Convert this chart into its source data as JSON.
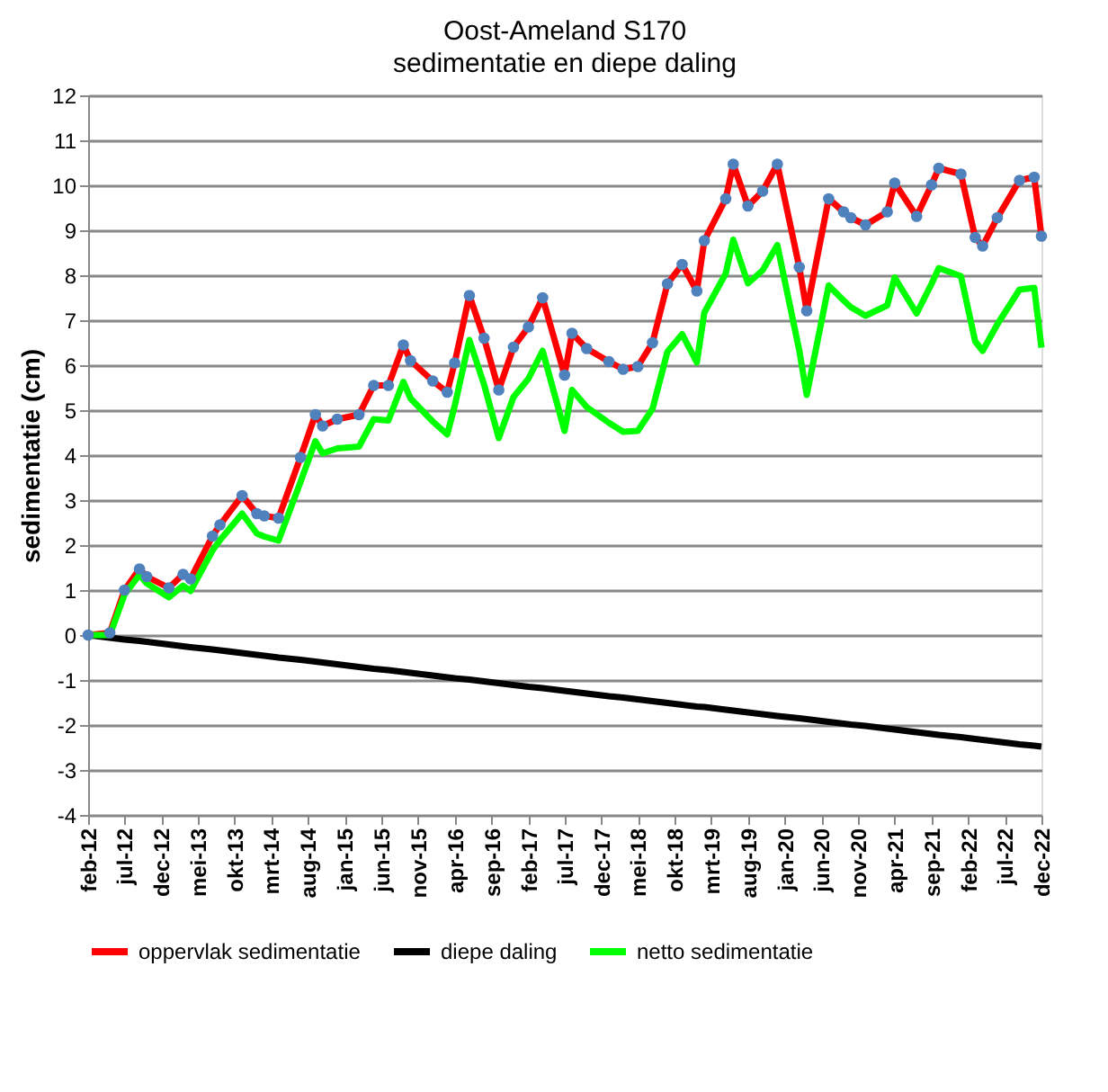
{
  "chart_data": {
    "type": "line",
    "title": "Oost-Ameland S170",
    "subtitle": "sedimentatie en diepe daling",
    "ylabel": "sedimentatie (cm)",
    "x": [
      "2012-02",
      "2012-05",
      "2012-07",
      "2012-09",
      "2012-10",
      "2013-01",
      "2013-03",
      "2013-04",
      "2013-07",
      "2013-08",
      "2013-11",
      "2014-01",
      "2014-02",
      "2014-04",
      "2014-07",
      "2014-09",
      "2014-10",
      "2014-12",
      "2015-03",
      "2015-05",
      "2015-07",
      "2015-09",
      "2015-10",
      "2016-01",
      "2016-03",
      "2016-04",
      "2016-06",
      "2016-08",
      "2016-10",
      "2016-12",
      "2017-02",
      "2017-04",
      "2017-07",
      "2017-08",
      "2017-10",
      "2018-01",
      "2018-03",
      "2018-05",
      "2018-07",
      "2018-09",
      "2018-11",
      "2019-01",
      "2019-02",
      "2019-05",
      "2019-06",
      "2019-08",
      "2019-10",
      "2019-12",
      "2020-03",
      "2020-04",
      "2020-07",
      "2020-09",
      "2020-10",
      "2020-12",
      "2021-03",
      "2021-04",
      "2021-07",
      "2021-09",
      "2021-10",
      "2022-01",
      "2022-03",
      "2022-04",
      "2022-06",
      "2022-09",
      "2022-11",
      "2022-12"
    ],
    "series": [
      {
        "name": "oppervlak sedimentatie",
        "color": "#ff0000",
        "marker": "circle",
        "values": [
          0,
          0.05,
          1.0,
          1.47,
          1.3,
          1.05,
          1.35,
          1.25,
          2.2,
          2.45,
          3.1,
          2.7,
          2.65,
          2.6,
          3.95,
          4.9,
          4.65,
          4.8,
          4.9,
          5.55,
          5.55,
          6.45,
          6.1,
          5.65,
          5.4,
          6.05,
          7.55,
          6.6,
          5.45,
          6.4,
          6.85,
          7.5,
          5.78,
          6.71,
          6.37,
          6.08,
          5.91,
          5.97,
          6.5,
          7.81,
          8.24,
          7.65,
          8.77,
          9.7,
          10.47,
          9.54,
          9.87,
          10.47,
          8.18,
          7.21,
          9.7,
          9.41,
          9.28,
          9.12,
          9.41,
          10.05,
          9.31,
          10.01,
          10.38,
          10.25,
          8.84,
          8.65,
          9.28,
          10.11,
          10.18,
          8.87
        ]
      },
      {
        "name": "diepe daling",
        "color": "#000000",
        "values": [
          0,
          -0.06,
          -0.1,
          -0.13,
          -0.15,
          -0.21,
          -0.25,
          -0.27,
          -0.32,
          -0.34,
          -0.4,
          -0.44,
          -0.46,
          -0.5,
          -0.55,
          -0.59,
          -0.61,
          -0.65,
          -0.71,
          -0.75,
          -0.78,
          -0.82,
          -0.84,
          -0.9,
          -0.94,
          -0.96,
          -0.99,
          -1.03,
          -1.07,
          -1.11,
          -1.15,
          -1.18,
          -1.24,
          -1.26,
          -1.3,
          -1.36,
          -1.39,
          -1.43,
          -1.47,
          -1.51,
          -1.55,
          -1.59,
          -1.6,
          -1.66,
          -1.68,
          -1.72,
          -1.76,
          -1.8,
          -1.85,
          -1.87,
          -1.93,
          -1.97,
          -1.99,
          -2.02,
          -2.08,
          -2.1,
          -2.16,
          -2.2,
          -2.22,
          -2.27,
          -2.31,
          -2.33,
          -2.37,
          -2.43,
          -2.46,
          -2.48
        ]
      },
      {
        "name": "netto sedimentatie",
        "color": "#00ff00",
        "values": [
          0,
          0,
          0.9,
          1.34,
          1.15,
          0.84,
          1.1,
          0.98,
          1.88,
          2.11,
          2.7,
          2.26,
          2.19,
          2.1,
          3.4,
          4.31,
          4.04,
          4.15,
          4.19,
          4.8,
          4.77,
          5.63,
          5.26,
          4.75,
          4.46,
          5.09,
          6.56,
          5.57,
          4.38,
          5.29,
          5.7,
          6.32,
          4.54,
          5.45,
          5.07,
          4.72,
          4.52,
          4.54,
          5.03,
          6.3,
          6.69,
          6.06,
          7.17,
          8.04,
          8.79,
          7.82,
          8.11,
          8.67,
          6.33,
          5.34,
          7.77,
          7.44,
          7.29,
          7.1,
          7.33,
          7.95,
          7.15,
          7.81,
          8.16,
          7.98,
          6.53,
          6.32,
          6.91,
          7.68,
          7.72,
          6.39
        ]
      }
    ],
    "xlim": [
      "2012-02",
      "2022-12"
    ],
    "xticks": [
      {
        "value": "2012-02",
        "label": "feb-12"
      },
      {
        "value": "2012-07",
        "label": "jul-12"
      },
      {
        "value": "2012-12",
        "label": "dec-12"
      },
      {
        "value": "2013-05",
        "label": "mei-13"
      },
      {
        "value": "2013-10",
        "label": "okt-13"
      },
      {
        "value": "2014-03",
        "label": "mrt-14"
      },
      {
        "value": "2014-08",
        "label": "aug-14"
      },
      {
        "value": "2015-01",
        "label": "jan-15"
      },
      {
        "value": "2015-06",
        "label": "jun-15"
      },
      {
        "value": "2015-11",
        "label": "nov-15"
      },
      {
        "value": "2016-04",
        "label": "apr-16"
      },
      {
        "value": "2016-09",
        "label": "sep-16"
      },
      {
        "value": "2017-02",
        "label": "feb-17"
      },
      {
        "value": "2017-07",
        "label": "jul-17"
      },
      {
        "value": "2017-12",
        "label": "dec-17"
      },
      {
        "value": "2018-05",
        "label": "mei-18"
      },
      {
        "value": "2018-10",
        "label": "okt-18"
      },
      {
        "value": "2019-03",
        "label": "mrt-19"
      },
      {
        "value": "2019-08",
        "label": "aug-19"
      },
      {
        "value": "2020-01",
        "label": "jan-20"
      },
      {
        "value": "2020-06",
        "label": "jun-20"
      },
      {
        "value": "2020-11",
        "label": "nov-20"
      },
      {
        "value": "2021-04",
        "label": "apr-21"
      },
      {
        "value": "2021-09",
        "label": "sep-21"
      },
      {
        "value": "2022-02",
        "label": "feb-22"
      },
      {
        "value": "2022-07",
        "label": "jul-22"
      },
      {
        "value": "2022-12",
        "label": "dec-22"
      }
    ],
    "ylim": [
      -4,
      12
    ],
    "yticks": [
      -4,
      -3,
      -2,
      -1,
      0,
      1,
      2,
      3,
      4,
      5,
      6,
      7,
      8,
      9,
      10,
      11,
      12
    ],
    "grid": "y",
    "legend": "bottom",
    "line_style": "solid"
  }
}
